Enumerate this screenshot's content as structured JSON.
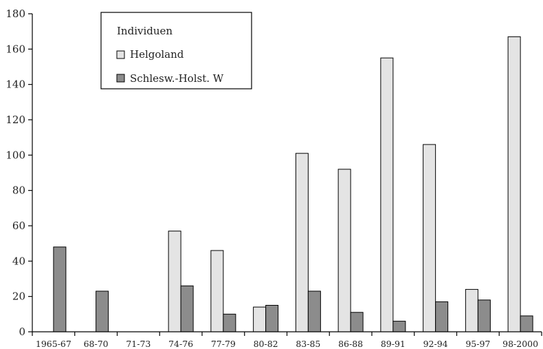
{
  "chart_data": {
    "type": "bar",
    "categories": [
      "1965-67",
      "68-70",
      "71-73",
      "74-76",
      "77-79",
      "80-82",
      "83-85",
      "86-88",
      "89-91",
      "92-94",
      "95-97",
      "98-2000"
    ],
    "series": [
      {
        "name": "Helgoland",
        "color": "#e4e4e4",
        "values": [
          0,
          0,
          0,
          57,
          46,
          14,
          101,
          92,
          155,
          106,
          24,
          167
        ]
      },
      {
        "name": "Schlesw.-Holst. W",
        "color": "#8c8c8c",
        "values": [
          48,
          23,
          0,
          26,
          10,
          15,
          23,
          11,
          6,
          17,
          18,
          9
        ]
      }
    ],
    "legend_title": "Individuen",
    "title": "",
    "xlabel": "",
    "ylabel": "",
    "ylim": [
      0,
      180
    ],
    "yticks": [
      "0",
      "20",
      "40",
      "60",
      "80",
      "100",
      "120",
      "140",
      "160",
      "180"
    ],
    "grid": false,
    "legend_position": "top-left"
  }
}
